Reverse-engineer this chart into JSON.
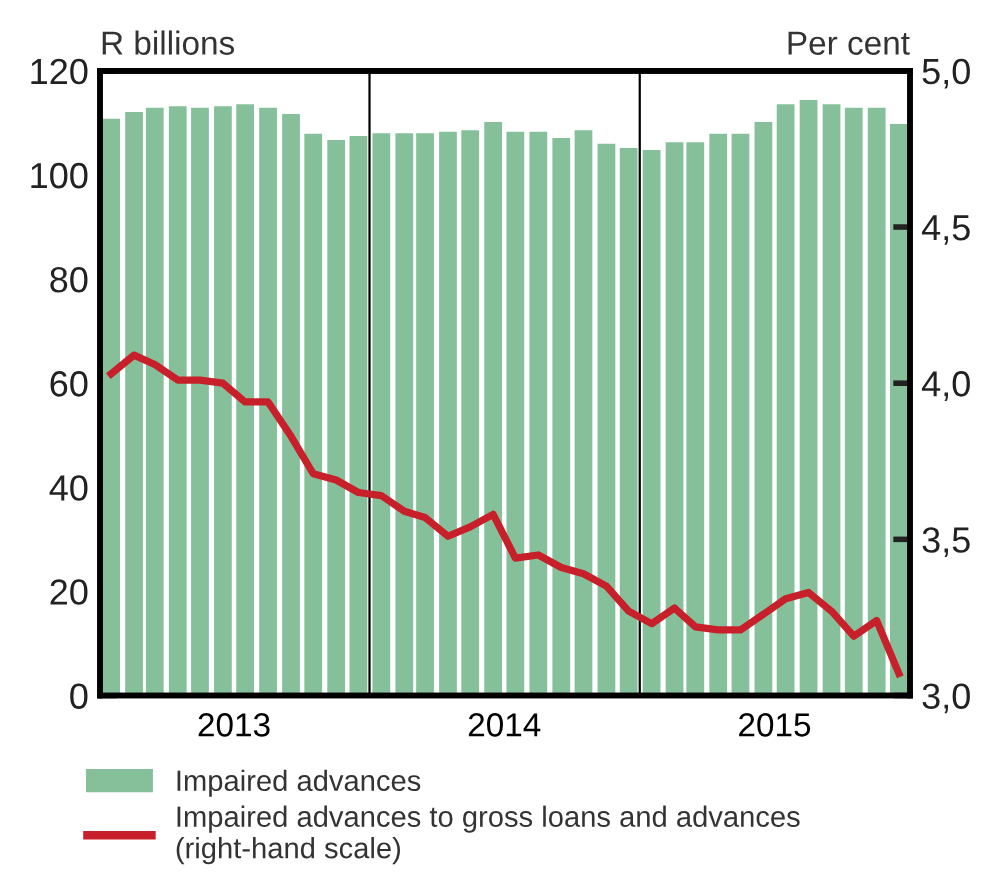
{
  "chart_data": {
    "type": "bar",
    "ylabel": "R billions",
    "y2label": "Per cent",
    "x": [
      "2013-01",
      "2013-02",
      "2013-03",
      "2013-04",
      "2013-05",
      "2013-06",
      "2013-07",
      "2013-08",
      "2013-09",
      "2013-10",
      "2013-11",
      "2013-12",
      "2014-01",
      "2014-02",
      "2014-03",
      "2014-04",
      "2014-05",
      "2014-06",
      "2014-07",
      "2014-08",
      "2014-09",
      "2014-10",
      "2014-11",
      "2014-12",
      "2015-01",
      "2015-02",
      "2015-03",
      "2015-04",
      "2015-05",
      "2015-06",
      "2015-07",
      "2015-08",
      "2015-09",
      "2015-10",
      "2015-11",
      "2015-12"
    ],
    "series": [
      {
        "name": "Impaired advances",
        "color": "#86c09b",
        "values": [
          110.8,
          112.1,
          112.9,
          113.2,
          112.9,
          113.2,
          113.6,
          112.9,
          111.7,
          107.9,
          106.7,
          107.5,
          108.0,
          108.0,
          108.0,
          108.3,
          108.6,
          110.2,
          108.3,
          108.3,
          107.1,
          108.6,
          106.0,
          105.2,
          104.8,
          106.3,
          106.3,
          107.9,
          107.9,
          110.2,
          113.6,
          114.4,
          113.6,
          112.9,
          112.9,
          109.8
        ]
      },
      {
        "name": "Impaired advances to gross loans and advances\n(right-hand scale)",
        "type": "line",
        "axis": "y2",
        "color": "#c8202a",
        "values": [
          4.03,
          4.09,
          4.06,
          4.01,
          4.01,
          4.0,
          3.94,
          3.94,
          3.83,
          3.71,
          3.69,
          3.65,
          3.64,
          3.59,
          3.57,
          3.51,
          3.54,
          3.58,
          3.44,
          3.45,
          3.41,
          3.39,
          3.35,
          3.27,
          3.23,
          3.28,
          3.22,
          3.21,
          3.21,
          3.26,
          3.31,
          3.33,
          3.27,
          3.19,
          3.24,
          3.07
        ]
      }
    ],
    "xlim": [
      "2012-12-17",
      "2015-12-16"
    ],
    "xticks": [
      {
        "value": "2013-06-16",
        "label": "2013"
      },
      {
        "value": "2014-06-16",
        "label": "2014"
      },
      {
        "value": "2015-06-16",
        "label": "2015"
      }
    ],
    "ylim": [
      0,
      120
    ],
    "yticks": [
      0,
      20,
      40,
      60,
      80,
      100,
      120
    ],
    "y2lim": [
      3.0,
      5.0
    ],
    "y2ticks": [
      {
        "value": 3.0,
        "label": "3,0"
      },
      {
        "value": 3.5,
        "label": "3,5"
      },
      {
        "value": 4.0,
        "label": "4,0"
      },
      {
        "value": 4.5,
        "label": "4,5"
      },
      {
        "value": 5.0,
        "label": "5,0"
      }
    ],
    "ref_lines": [
      {
        "axis": "x",
        "value": "2013-12-16",
        "color": "#000000"
      },
      {
        "axis": "x",
        "value": "2014-12-16",
        "color": "#000000"
      }
    ],
    "grid": false,
    "legend": "bottom",
    "marker": "none",
    "line_style": "solid"
  }
}
